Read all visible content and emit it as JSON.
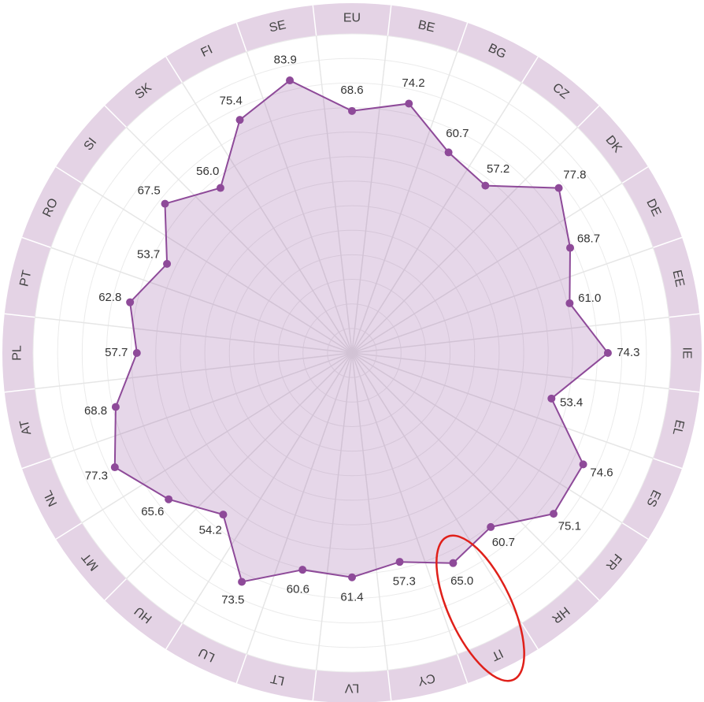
{
  "chart_data": {
    "type": "radar",
    "categories": [
      "EU",
      "BE",
      "BG",
      "CZ",
      "DK",
      "DE",
      "EE",
      "IE",
      "EL",
      "ES",
      "FR",
      "HR",
      "IT",
      "CY",
      "LV",
      "LT",
      "LU",
      "HU",
      "MT",
      "NL",
      "AT",
      "PL",
      "PT",
      "RO",
      "SI",
      "SK",
      "FI",
      "SE"
    ],
    "values": [
      68.6,
      74.2,
      60.7,
      57.2,
      77.8,
      68.7,
      61.0,
      74.3,
      53.4,
      74.6,
      75.1,
      60.7,
      65.0,
      57.3,
      61.4,
      60.6,
      73.5,
      54.2,
      65.6,
      77.3,
      68.8,
      57.7,
      62.8,
      53.7,
      67.5,
      56.0,
      75.4,
      83.9
    ],
    "value_labels": [
      "68.6",
      "74.2",
      "60.7",
      "57.2",
      "77.8",
      "68.7",
      "61.0",
      "74.3",
      "53.4",
      "74.6",
      "75.1",
      "60.7",
      "65.0",
      "57.3",
      "61.4",
      "60.6",
      "73.5",
      "54.2",
      "65.6",
      "77.3",
      "68.8",
      "57.7",
      "62.8",
      "53.7",
      "67.5",
      "56.0",
      "75.4",
      "83.9"
    ],
    "color": "#8e4a99",
    "rlim": [
      -30,
      100
    ],
    "rticks": [
      -20,
      -10,
      0,
      10,
      20,
      30,
      40,
      50,
      60,
      70,
      80,
      90,
      100
    ],
    "grid": true
  }
}
